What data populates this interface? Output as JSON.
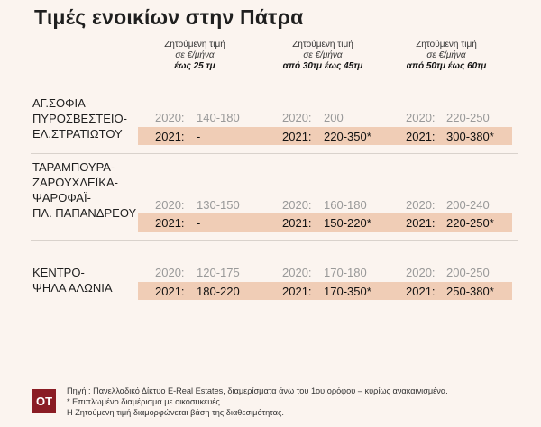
{
  "title": "Τιμές ενοικίων στην Πάτρα",
  "columns": [
    {
      "line1": "Ζητούμενη τιμή",
      "line2": "σε €/μήνα",
      "range": "έως 25 τμ"
    },
    {
      "line1": "Ζητούμενη τιμή",
      "line2": "σε €/μήνα",
      "range": "από 30τμ έως 45τμ"
    },
    {
      "line1": "Ζητούμενη τιμή",
      "line2": "σε €/μήνα",
      "range": "από 50τμ έως 60τμ"
    }
  ],
  "rows": [
    {
      "region_lines": [
        "ΑΓ.ΣΟΦΙΑ-",
        "ΠΥΡΟΣΒΕΣΤΕΙΟ-",
        "ΕΛ.ΣΤΡΑΤΙΩΤΟΥ"
      ],
      "y2020": "2020:",
      "y2021": "2021:",
      "v2020": [
        "140-180",
        "200",
        "220-250"
      ],
      "v2021": [
        "-",
        "220-350*",
        "300-380*"
      ]
    },
    {
      "region_lines": [
        "ΤΑΡΑΜΠΟΥΡΑ-",
        "ΖΑΡΟΥΧΛΕΪΚΑ-",
        "ΨΑΡΟΦΑΪ-",
        "ΠΛ. ΠΑΠΑΝΔΡΕΟΥ"
      ],
      "y2020": "2020:",
      "y2021": "2021:",
      "v2020": [
        "130-150",
        "160-180",
        "200-240"
      ],
      "v2021": [
        "-",
        "150-220*",
        "220-250*"
      ]
    },
    {
      "region_lines": [
        "ΚΕΝΤΡΟ-",
        "ΨΗΛΑ ΑΛΩΝΙΑ"
      ],
      "y2020": "2020:",
      "y2021": "2021:",
      "v2020": [
        "120-175",
        "170-180",
        "200-250"
      ],
      "v2021": [
        "180-220",
        "170-350*",
        "250-380*"
      ]
    }
  ],
  "footer": {
    "logo": "ΟΤ",
    "source": "Πηγή : Πανελλαδικό Δίκτυο E-Real Estates, διαμερίσματα άνω του 1ου ορόφου – κυρίως ανακαινισμένα.",
    "note1": "* Επιπλωμένο διαμέρισμα με οικοσυκευές.",
    "note2": "Η Ζητούμενη τιμή διαμορφώνεται βάση της διαθεσιμότητας."
  },
  "colors": {
    "highlight": "#f0cdb6",
    "background": "#fbf4ef",
    "logo": "#8a1c24"
  }
}
